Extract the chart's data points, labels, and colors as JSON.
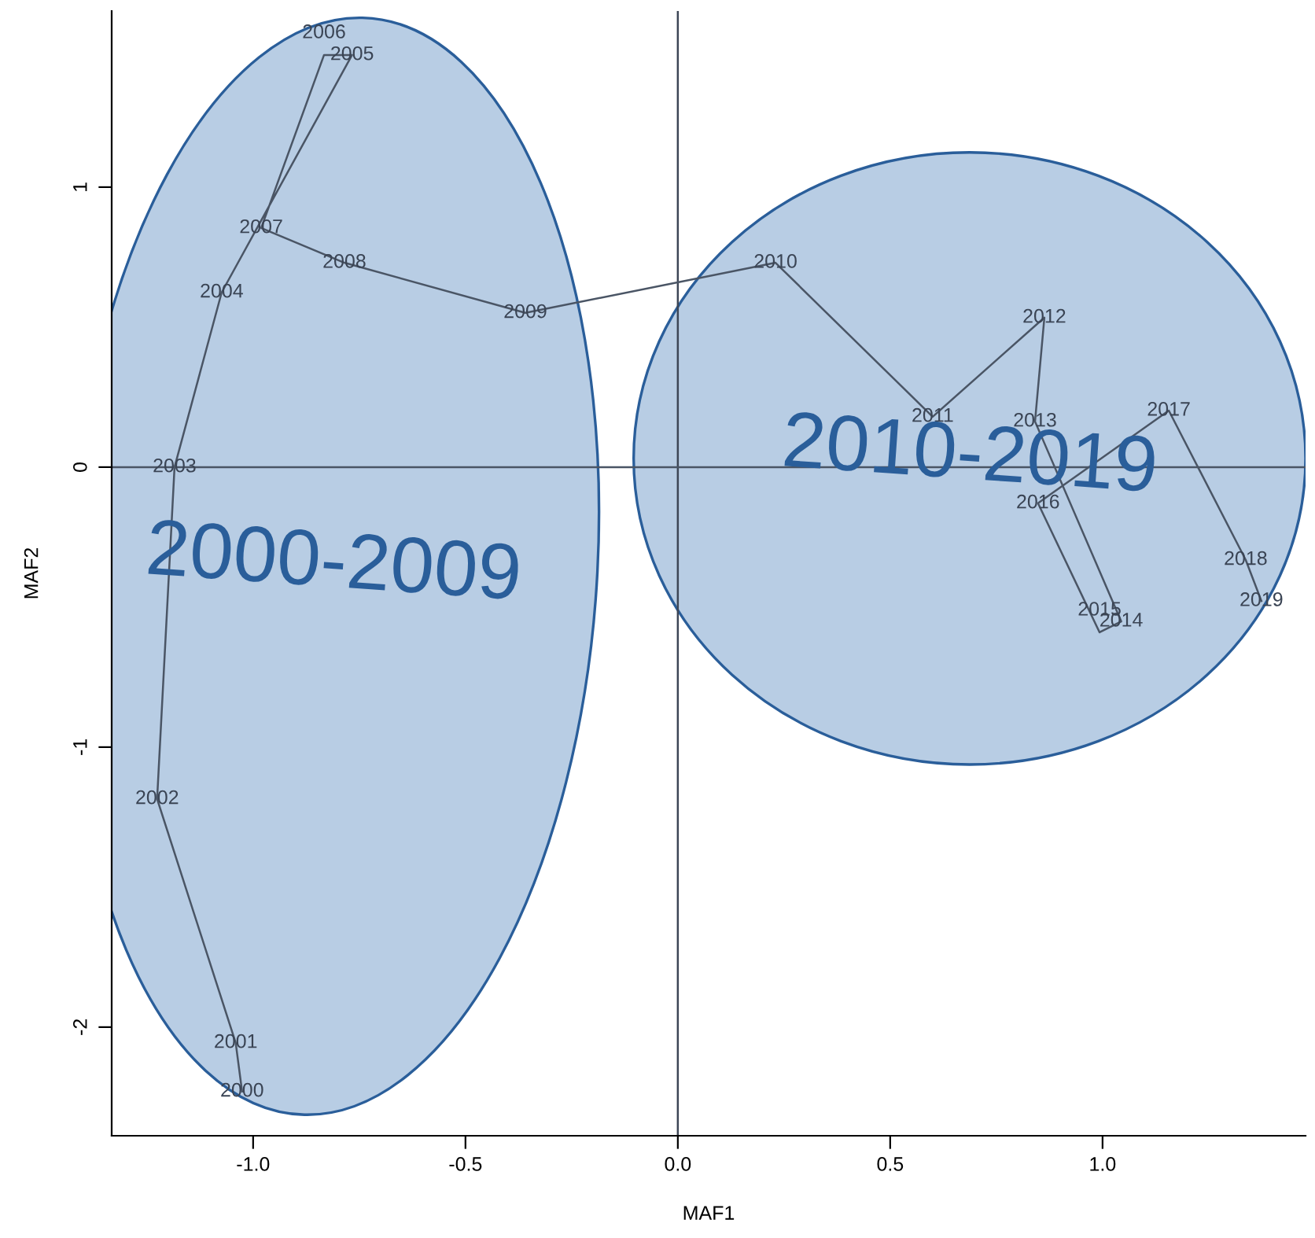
{
  "chart_data": {
    "type": "line",
    "xlabel": "MAF1",
    "ylabel": "MAF2",
    "xlim": [
      -1.333,
      1.478
    ],
    "ylim": [
      -2.388,
      1.629
    ],
    "xticks": [
      {
        "value": -1.0,
        "label": "-1.0"
      },
      {
        "value": -0.5,
        "label": "-0.5"
      },
      {
        "value": 0.0,
        "label": "0.0"
      },
      {
        "value": 0.5,
        "label": "0.5"
      },
      {
        "value": 1.0,
        "label": "1.0"
      }
    ],
    "yticks": [
      -2,
      -1,
      0,
      1
    ],
    "grid": false,
    "marker": "none",
    "line_style": "solid",
    "series": [
      {
        "color": "#4a5565",
        "x": [
          -1.026,
          -1.041,
          -1.226,
          -1.185,
          -1.074,
          -0.767,
          -0.833,
          -0.981,
          -0.785,
          -0.359,
          0.23,
          0.6,
          0.863,
          0.841,
          1.044,
          0.993,
          0.848,
          1.156,
          1.337,
          1.374
        ],
        "values": [
          -2.23,
          -2.056,
          -1.185,
          0.0,
          0.624,
          1.472,
          1.472,
          0.854,
          0.73,
          0.551,
          0.73,
          0.18,
          0.534,
          0.163,
          -0.551,
          -0.59,
          -0.129,
          0.202,
          -0.331,
          -0.478
        ]
      }
    ],
    "ref_lines": [
      {
        "axis": "x",
        "value": 0,
        "color": "#3d4656"
      },
      {
        "axis": "y",
        "value": 0,
        "color": "#4a5565"
      }
    ],
    "annotations": [
      "2000-2009",
      "2010-2019",
      {
        "text": "2000",
        "x": -1.026,
        "y": -2.23
      },
      {
        "text": "2001",
        "x": -1.041,
        "y": -2.056
      },
      {
        "text": "2002",
        "x": -1.226,
        "y": -1.185
      },
      {
        "text": "2003",
        "x": -1.185,
        "y": 0.0
      },
      {
        "text": "2004",
        "x": -1.074,
        "y": 0.624
      },
      {
        "text": "2005",
        "x": -0.767,
        "y": 1.472
      },
      {
        "text": "2006",
        "x": -0.833,
        "y": 1.472
      },
      {
        "text": "2007",
        "x": -0.981,
        "y": 0.854
      },
      {
        "text": "2008",
        "x": -0.785,
        "y": 0.73
      },
      {
        "text": "2009",
        "x": -0.359,
        "y": 0.551
      },
      {
        "text": "2010",
        "x": 0.23,
        "y": 0.73
      },
      {
        "text": "2011",
        "x": 0.6,
        "y": 0.18
      },
      {
        "text": "2012",
        "x": 0.863,
        "y": 0.534
      },
      {
        "text": "2013",
        "x": 0.841,
        "y": 0.163
      },
      {
        "text": "2014",
        "x": 1.044,
        "y": -0.551
      },
      {
        "text": "2015",
        "x": 0.993,
        "y": -0.59
      },
      {
        "text": "2016",
        "x": 0.848,
        "y": -0.129
      },
      {
        "text": "2017",
        "x": 1.156,
        "y": 0.202
      },
      {
        "text": "2018",
        "x": 1.337,
        "y": -0.331
      },
      {
        "text": "2019",
        "x": 1.374,
        "y": -0.478
      }
    ]
  }
}
